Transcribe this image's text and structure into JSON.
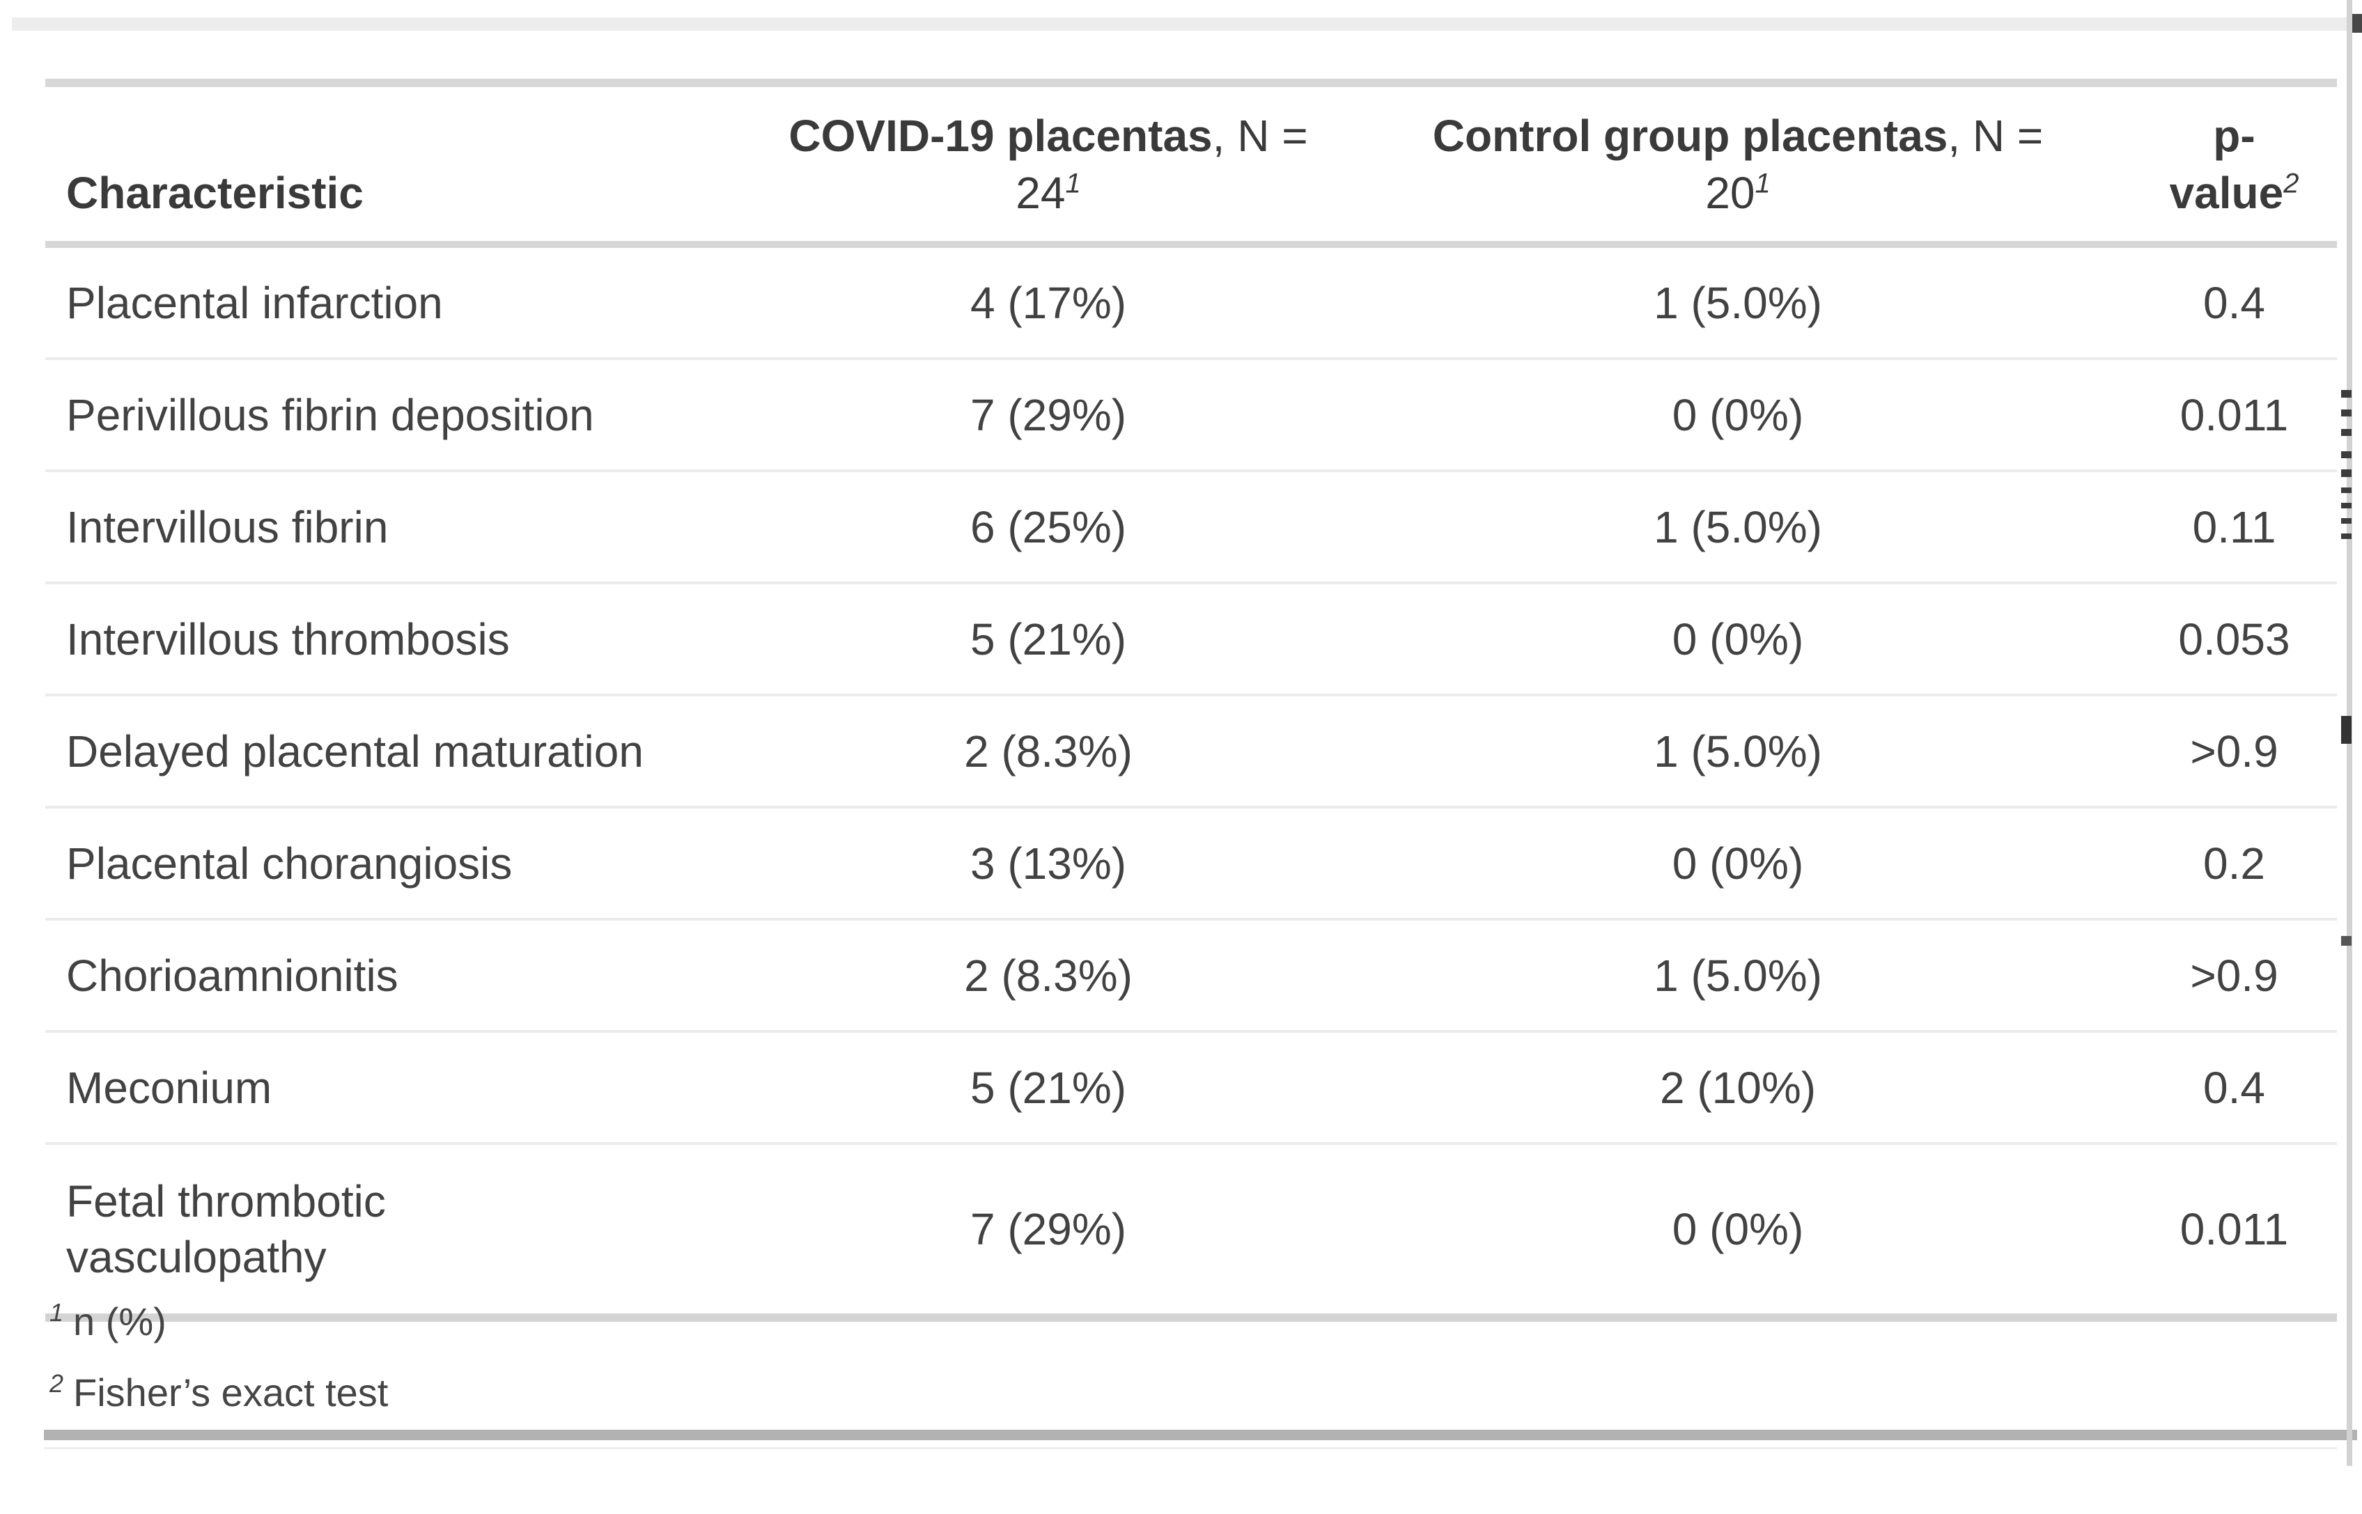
{
  "table": {
    "header": {
      "characteristic": "Characteristic",
      "covid": {
        "group": "COVID-19 placentas",
        "n_label": ", N =",
        "n_value": "24",
        "footnote_marker": "1"
      },
      "control": {
        "group": "Control group placentas",
        "n_label": ", N =",
        "n_value": "20",
        "footnote_marker": "1"
      },
      "pvalue": {
        "line1": "p-",
        "line2": "value",
        "footnote_marker": "2"
      }
    },
    "rows": [
      {
        "characteristic": "Placental infarction",
        "covid": "4 (17%)",
        "control": "1 (5.0%)",
        "p": "0.4"
      },
      {
        "characteristic": "Perivillous fibrin deposition",
        "covid": "7 (29%)",
        "control": "0 (0%)",
        "p": "0.011"
      },
      {
        "characteristic": "Intervillous fibrin",
        "covid": "6 (25%)",
        "control": "1 (5.0%)",
        "p": "0.11"
      },
      {
        "characteristic": "Intervillous thrombosis",
        "covid": "5 (21%)",
        "control": "0 (0%)",
        "p": "0.053"
      },
      {
        "characteristic": "Delayed placental maturation",
        "covid": "2 (8.3%)",
        "control": "1 (5.0%)",
        "p": ">0.9"
      },
      {
        "characteristic": "Placental chorangiosis",
        "covid": "3 (13%)",
        "control": "0 (0%)",
        "p": "0.2"
      },
      {
        "characteristic": "Chorioamnionitis",
        "covid": "2 (8.3%)",
        "control": "1 (5.0%)",
        "p": ">0.9"
      },
      {
        "characteristic": "Meconium",
        "covid": "5 (21%)",
        "control": "2 (10%)",
        "p": "0.4"
      },
      {
        "characteristic": "Fetal thrombotic vasculopathy",
        "covid": "7 (29%)",
        "control": "0 (0%)",
        "p": "0.011"
      }
    ],
    "footnotes": [
      {
        "marker": "1",
        "text": "n (%)"
      },
      {
        "marker": "2",
        "text": "Fisher’s exact test"
      }
    ]
  },
  "colors": {
    "text": "#424242",
    "rule_light": "#ebebeb",
    "rule_medium": "#d7d7d7",
    "rule_dark": "#b2b2b2",
    "top_band": "#ededed"
  }
}
